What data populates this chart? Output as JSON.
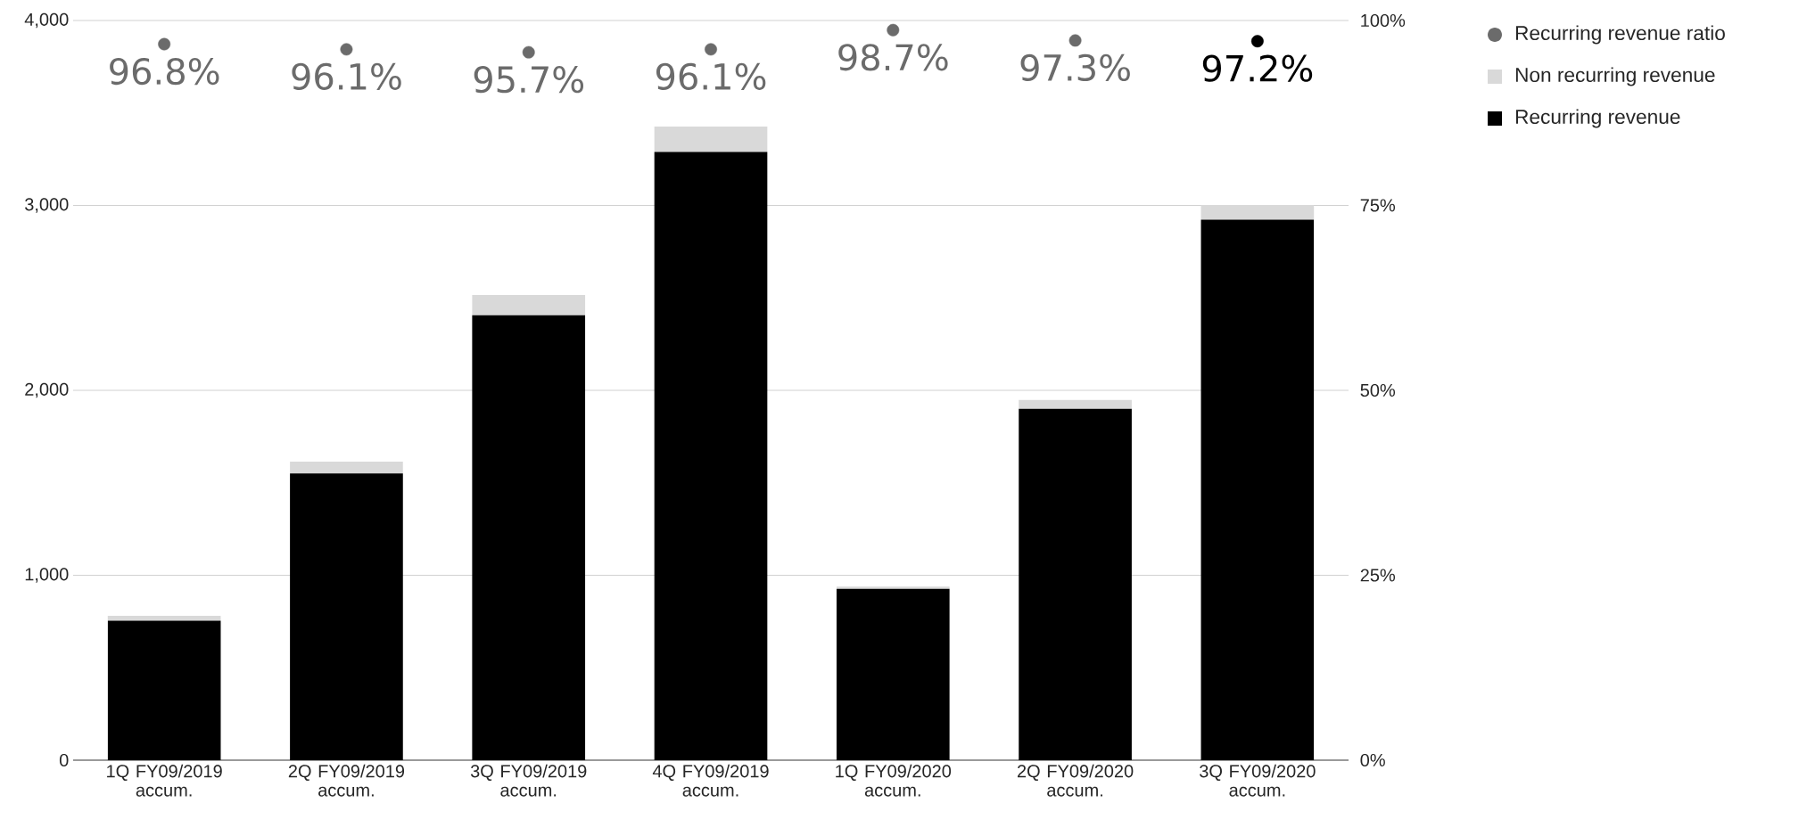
{
  "chart_data": {
    "type": "bar",
    "stacked": true,
    "grid": "y",
    "legend": "top right",
    "categories": [
      "1Q FY09/2019 accum.",
      "2Q FY09/2019 accum.",
      "3Q FY09/2019 accum.",
      "4Q FY09/2019 accum.",
      "1Q FY09/2020 accum.",
      "2Q FY09/2020 accum.",
      "3Q FY09/2020 accum."
    ],
    "series": [
      {
        "name": "Recurring revenue",
        "type": "bar",
        "color": "#000000",
        "values": [
          754,
          1550,
          2406,
          3289,
          927,
          1900,
          2923
        ]
      },
      {
        "name": "Non recurring revenue",
        "type": "bar",
        "color": "#d9d9d9",
        "values": [
          27,
          64,
          109,
          138,
          12,
          48,
          79
        ]
      },
      {
        "name": "Recurring revenue ratio",
        "type": "scatter",
        "axis": "y2",
        "marker": "circle",
        "color": "#6b6b6b",
        "colors": [
          "#6b6b6b",
          "#6b6b6b",
          "#6b6b6b",
          "#6b6b6b",
          "#6b6b6b",
          "#6b6b6b",
          "#000000"
        ],
        "values": [
          96.8,
          96.1,
          95.7,
          96.1,
          98.7,
          97.3,
          97.2
        ],
        "value_labels": [
          "96.8%",
          "96.1%",
          "95.7%",
          "96.1%",
          "98.7%",
          "97.3%",
          "97.2%"
        ]
      }
    ],
    "ylim": [
      0,
      4000
    ],
    "yticks": [
      {
        "value": 0,
        "label": "0"
      },
      {
        "value": 1000,
        "label": "1,000"
      },
      {
        "value": 2000,
        "label": "2,000"
      },
      {
        "value": 3000,
        "label": "3,000"
      },
      {
        "value": 4000,
        "label": "4,000"
      }
    ],
    "y2lim": [
      0,
      100
    ],
    "y2ticks": [
      {
        "value": 0,
        "label": "0%"
      },
      {
        "value": 25,
        "label": "25%"
      },
      {
        "value": 50,
        "label": "50%"
      },
      {
        "value": 75,
        "label": "75%"
      },
      {
        "value": 100,
        "label": "100%"
      }
    ]
  }
}
